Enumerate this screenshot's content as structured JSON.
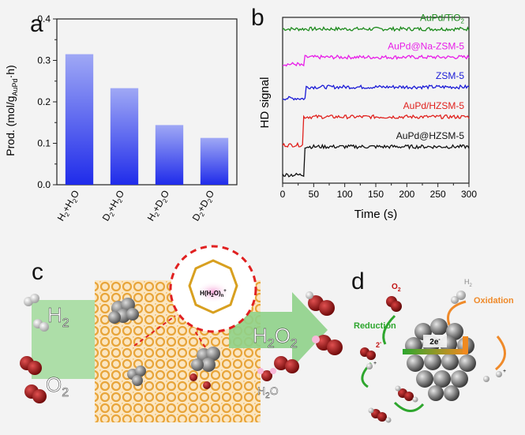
{
  "panels": {
    "a": {
      "letter": "a"
    },
    "b": {
      "letter": "b"
    },
    "c": {
      "letter": "c"
    },
    "d": {
      "letter": "d"
    }
  },
  "chart_data": [
    {
      "type": "bar",
      "categories": [
        "H2+H2O",
        "D2+H2O",
        "H2+D2O",
        "D2+D2O"
      ],
      "category_labels": [
        {
          "a": "H",
          "as": "2",
          "b": "+H",
          "bs": "2",
          "c": "O"
        },
        {
          "a": "D",
          "as": "2",
          "b": "+H",
          "bs": "2",
          "c": "O"
        },
        {
          "a": "H",
          "as": "2",
          "b": "+D",
          "bs": "2",
          "c": "O"
        },
        {
          "a": "D",
          "as": "2",
          "b": "+D",
          "bs": "2",
          "c": "O"
        }
      ],
      "values": [
        0.315,
        0.233,
        0.144,
        0.113
      ],
      "ylim": [
        0,
        0.4
      ],
      "yticks": [
        "0.0",
        "0.1",
        "0.2",
        "0.3",
        "0.4"
      ],
      "ylabel": {
        "main": "Prod. (mol/g",
        "sub": "AuPd",
        "tail": "·h)"
      },
      "colors": {
        "top": "#9fa8f5",
        "bottom": "#1f2bea"
      }
    },
    {
      "type": "line",
      "xlabel": "Time (s)",
      "ylabel": "HD signal",
      "xlim": [
        0,
        300
      ],
      "xticks": [
        "0",
        "50",
        "100",
        "150",
        "200",
        "250",
        "300"
      ],
      "series": [
        {
          "name": "AuPd/TiO",
          "sub": "2",
          "color": "#1c8a1c",
          "step_time": null,
          "base": 0.93
        },
        {
          "name": "AuPd@Na-ZSM-5",
          "sub": "",
          "color": "#e81ce8",
          "step_time": 30,
          "base": 0.76
        },
        {
          "name": "ZSM-5",
          "sub": "",
          "color": "#1a1ad6",
          "step_time": 32,
          "base": 0.58
        },
        {
          "name": "AuPd/HZSM-5",
          "sub": "",
          "color": "#e0201c",
          "step_time": 33,
          "base": 0.4
        },
        {
          "name": "AuPd@HZSM-5",
          "sub": "",
          "color": "#111111",
          "step_time": 35,
          "base": 0.22
        }
      ]
    }
  ],
  "scheme_c": {
    "h2": {
      "main": "H",
      "sub": "2"
    },
    "o2": {
      "main": "O",
      "sub": "2"
    },
    "h2o2": {
      "main": "H",
      "sub": "2",
      "main2": "O",
      "sub2": "2"
    },
    "h2o": {
      "main": "H",
      "sub": "2",
      "tail": "O"
    },
    "cluster": {
      "main": "H(H",
      "sub": "2",
      "mid": "O)",
      "subn": "n",
      "sup": "+"
    }
  },
  "scheme_d": {
    "o2": {
      "main": "O",
      "sub": "2"
    },
    "h2": {
      "main": "H",
      "sub": "2"
    },
    "reduction": "Reduction",
    "oxidation": "Oxidation",
    "electrons": {
      "main": "2e",
      "sup": "-"
    },
    "charge": {
      "main": "2",
      "sup": "-"
    },
    "hplus_sup": "+"
  },
  "colors": {
    "arrow_green": "#8fd18a",
    "framework": "#e8a53a",
    "oxygen": "#a01a1a",
    "red_dash": "#e02020",
    "orange": "#ef8a2a"
  }
}
